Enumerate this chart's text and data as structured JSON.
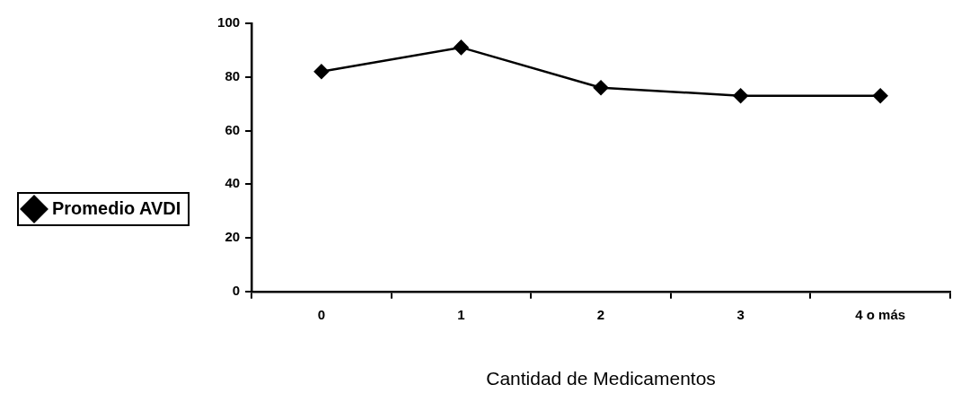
{
  "chart_data": {
    "type": "line",
    "xlabel": "Cantidad de Medicamentos",
    "categories": [
      "0",
      "1",
      "2",
      "3",
      "4 o más"
    ],
    "series": [
      {
        "name": "Promedio AVDI",
        "color": "#000000",
        "values": [
          82,
          91,
          76,
          73,
          73
        ]
      }
    ],
    "ylim": [
      0,
      100
    ],
    "yticks": [
      0,
      20,
      40,
      60,
      80,
      100
    ],
    "grid": false,
    "legend": "left",
    "marker": "diamond",
    "line_style": "solid"
  }
}
